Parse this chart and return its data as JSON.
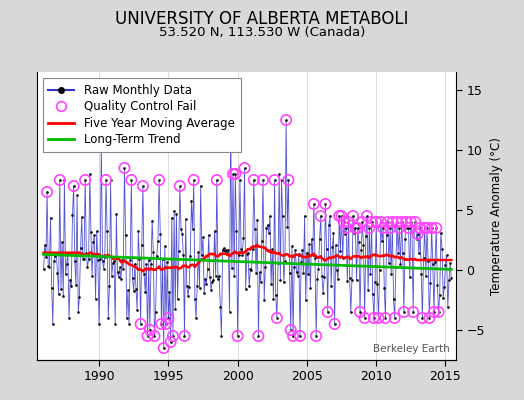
{
  "title": "UNIVERSITY OF ALBERTA METABOLI",
  "subtitle": "53.520 N, 113.530 W (Canada)",
  "ylabel_right": "Temperature Anomaly (°C)",
  "watermark": "Berkeley Earth",
  "start_year": 1985.5,
  "end_year": 2015.75,
  "ylim": [
    -7.5,
    16.5
  ],
  "yticks": [
    -5,
    0,
    5,
    10,
    15
  ],
  "bg_color": "#d8d8d8",
  "plot_bg_color": "#ffffff",
  "raw_color": "#3333cc",
  "qc_color": "#ff44ff",
  "mov_avg_color": "#ff0000",
  "trend_color": "#00bb00",
  "raw_dot_color": "#000000",
  "legend_fontsize": 8.5,
  "title_fontsize": 12,
  "subtitle_fontsize": 9.5,
  "xticks": [
    1990,
    1995,
    2000,
    2005,
    2010,
    2015
  ]
}
